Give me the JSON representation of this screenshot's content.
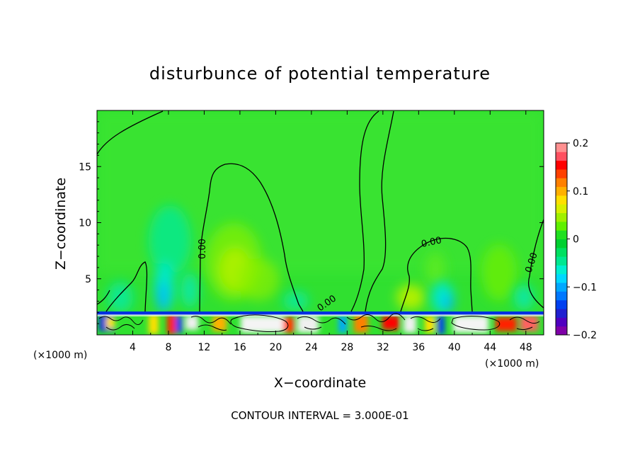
{
  "chart_data": {
    "type": "heatmap",
    "title": "disturbunce of potential temperature",
    "xlabel": "X−coordinate",
    "ylabel": "Z−coordinate",
    "x_unit": "(×1000 m)",
    "y_unit": "(×1000 m)",
    "xlim": [
      0,
      50
    ],
    "ylim": [
      0,
      20
    ],
    "x_ticks": [
      4,
      8,
      12,
      16,
      20,
      24,
      28,
      32,
      36,
      40,
      44,
      48
    ],
    "y_ticks": [
      5,
      10,
      15
    ],
    "contour_labels": [
      {
        "text": "0.00",
        "x": 12.3,
        "z": 8.3
      },
      {
        "text": "0.00",
        "x": 25.4,
        "z": 2.5
      },
      {
        "text": "0.00",
        "x": 37.9,
        "z": 8.3
      },
      {
        "text": "0.00",
        "x": 48.2,
        "z": 6.8
      }
    ],
    "colorbar": {
      "min": -0.2,
      "max": 0.2,
      "tick_labels": [
        "0.2",
        "0.1",
        "0",
        "−0.1",
        "−0.2"
      ],
      "colors": [
        "#7f00a8",
        "#5000c0",
        "#2020d0",
        "#0040f0",
        "#0078ff",
        "#00a8ff",
        "#00d8ff",
        "#00f0d0",
        "#00e890",
        "#00e060",
        "#00d030",
        "#20e020",
        "#60f000",
        "#a0f000",
        "#d8f000",
        "#ffe000",
        "#ffb000",
        "#ff8000",
        "#ff4000",
        "#ff0000",
        "#ff5060",
        "#ff9090"
      ]
    }
  },
  "footer": {
    "contour_interval": "CONTOUR INTERVAL = 3.000E-01"
  }
}
